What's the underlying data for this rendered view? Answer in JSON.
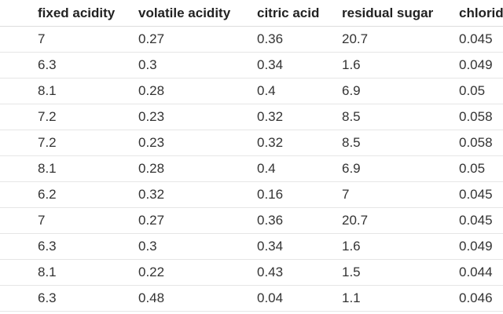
{
  "table": {
    "columns": [
      "fixed acidity",
      "volatile acidity",
      "citric acid",
      "residual sugar",
      "chlorides"
    ],
    "rows": [
      [
        "7",
        "0.27",
        "0.36",
        "20.7",
        "0.045"
      ],
      [
        "6.3",
        "0.3",
        "0.34",
        "1.6",
        "0.049"
      ],
      [
        "8.1",
        "0.28",
        "0.4",
        "6.9",
        "0.05"
      ],
      [
        "7.2",
        "0.23",
        "0.32",
        "8.5",
        "0.058"
      ],
      [
        "7.2",
        "0.23",
        "0.32",
        "8.5",
        "0.058"
      ],
      [
        "8.1",
        "0.28",
        "0.4",
        "6.9",
        "0.05"
      ],
      [
        "6.2",
        "0.32",
        "0.16",
        "7",
        "0.045"
      ],
      [
        "7",
        "0.27",
        "0.36",
        "20.7",
        "0.045"
      ],
      [
        "6.3",
        "0.3",
        "0.34",
        "1.6",
        "0.049"
      ],
      [
        "8.1",
        "0.22",
        "0.43",
        "1.5",
        "0.044"
      ],
      [
        "6.3",
        "0.48",
        "0.04",
        "1.1",
        "0.046"
      ]
    ]
  }
}
